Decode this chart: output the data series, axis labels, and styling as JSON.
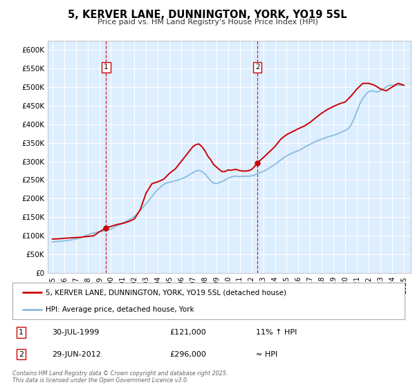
{
  "title": "5, KERVER LANE, DUNNINGTON, YORK, YO19 5SL",
  "subtitle": "Price paid vs. HM Land Registry's House Price Index (HPI)",
  "background_color": "#ffffff",
  "plot_bg_color": "#ddeeff",
  "grid_color": "#ffffff",
  "ylim": [
    0,
    625000
  ],
  "yticks": [
    0,
    50000,
    100000,
    150000,
    200000,
    250000,
    300000,
    350000,
    400000,
    450000,
    500000,
    550000,
    600000
  ],
  "ytick_labels": [
    "£0",
    "£50K",
    "£100K",
    "£150K",
    "£200K",
    "£250K",
    "£300K",
    "£350K",
    "£400K",
    "£450K",
    "£500K",
    "£550K",
    "£600K"
  ],
  "xlim_start": 1994.6,
  "xlim_end": 2025.6,
  "xticks": [
    1995,
    1996,
    1997,
    1998,
    1999,
    2000,
    2001,
    2002,
    2003,
    2004,
    2005,
    2006,
    2007,
    2008,
    2009,
    2010,
    2011,
    2012,
    2013,
    2014,
    2015,
    2016,
    2017,
    2018,
    2019,
    2020,
    2021,
    2022,
    2023,
    2024,
    2025
  ],
  "sale1_x": 1999.58,
  "sale1_y": 121000,
  "sale1_label": "1",
  "sale1_date": "30-JUL-1999",
  "sale1_price": "£121,000",
  "sale1_hpi": "11% ↑ HPI",
  "sale2_x": 2012.5,
  "sale2_y": 296000,
  "sale2_label": "2",
  "sale2_date": "29-JUN-2012",
  "sale2_price": "£296,000",
  "sale2_hpi": "≈ HPI",
  "line_color": "#cc0000",
  "hpi_color": "#88bbdd",
  "marker_color": "#cc0000",
  "dashed_color": "#cc0000",
  "legend_line1": "5, KERVER LANE, DUNNINGTON, YORK, YO19 5SL (detached house)",
  "legend_line2": "HPI: Average price, detached house, York",
  "footer": "Contains HM Land Registry data © Crown copyright and database right 2025.\nThis data is licensed under the Open Government Licence v3.0.",
  "hpi_data_x": [
    1995.0,
    1995.25,
    1995.5,
    1995.75,
    1996.0,
    1996.25,
    1996.5,
    1996.75,
    1997.0,
    1997.25,
    1997.5,
    1997.75,
    1998.0,
    1998.25,
    1998.5,
    1998.75,
    1999.0,
    1999.25,
    1999.5,
    1999.75,
    2000.0,
    2000.25,
    2000.5,
    2000.75,
    2001.0,
    2001.25,
    2001.5,
    2001.75,
    2002.0,
    2002.25,
    2002.5,
    2002.75,
    2003.0,
    2003.25,
    2003.5,
    2003.75,
    2004.0,
    2004.25,
    2004.5,
    2004.75,
    2005.0,
    2005.25,
    2005.5,
    2005.75,
    2006.0,
    2006.25,
    2006.5,
    2006.75,
    2007.0,
    2007.25,
    2007.5,
    2007.75,
    2008.0,
    2008.25,
    2008.5,
    2008.75,
    2009.0,
    2009.25,
    2009.5,
    2009.75,
    2010.0,
    2010.25,
    2010.5,
    2010.75,
    2011.0,
    2011.25,
    2011.5,
    2011.75,
    2012.0,
    2012.25,
    2012.5,
    2012.75,
    2013.0,
    2013.25,
    2013.5,
    2013.75,
    2014.0,
    2014.25,
    2014.5,
    2014.75,
    2015.0,
    2015.25,
    2015.5,
    2015.75,
    2016.0,
    2016.25,
    2016.5,
    2016.75,
    2017.0,
    2017.25,
    2017.5,
    2017.75,
    2018.0,
    2018.25,
    2018.5,
    2018.75,
    2019.0,
    2019.25,
    2019.5,
    2019.75,
    2020.0,
    2020.25,
    2020.5,
    2020.75,
    2021.0,
    2021.25,
    2021.5,
    2021.75,
    2022.0,
    2022.25,
    2022.5,
    2022.75,
    2023.0,
    2023.25,
    2023.5,
    2023.75,
    2024.0,
    2024.25,
    2024.5,
    2024.75,
    2025.0
  ],
  "hpi_data_y": [
    83000,
    84000,
    84500,
    85000,
    86000,
    87000,
    88000,
    89500,
    91000,
    93000,
    96000,
    99000,
    102000,
    105000,
    107000,
    109000,
    111000,
    112000,
    113000,
    115000,
    118000,
    122000,
    126000,
    130000,
    134000,
    138000,
    142000,
    146000,
    152000,
    160000,
    168000,
    177000,
    186000,
    196000,
    206000,
    216000,
    224000,
    232000,
    238000,
    242000,
    244000,
    246000,
    248000,
    250000,
    253000,
    256000,
    260000,
    265000,
    270000,
    274000,
    276000,
    273000,
    267000,
    258000,
    248000,
    242000,
    240000,
    243000,
    246000,
    250000,
    255000,
    258000,
    260000,
    260000,
    259000,
    260000,
    260000,
    260000,
    261000,
    263000,
    267000,
    270000,
    273000,
    277000,
    282000,
    287000,
    292000,
    298000,
    304000,
    310000,
    315000,
    319000,
    323000,
    326000,
    329000,
    333000,
    338000,
    342000,
    346000,
    350000,
    354000,
    357000,
    360000,
    363000,
    366000,
    368000,
    370000,
    373000,
    376000,
    380000,
    383000,
    388000,
    398000,
    415000,
    435000,
    455000,
    470000,
    480000,
    488000,
    490000,
    488000,
    487000,
    490000,
    495000,
    500000,
    505000,
    505000,
    505000,
    505000,
    505000,
    505000
  ],
  "price_data_x": [
    1995.0,
    1995.5,
    1996.0,
    1996.5,
    1997.0,
    1997.5,
    1998.0,
    1998.5,
    1999.0,
    1999.58,
    2000.0,
    2000.5,
    2001.0,
    2001.5,
    2002.0,
    2002.5,
    2003.0,
    2003.5,
    2004.0,
    2004.5,
    2005.0,
    2005.5,
    2006.0,
    2006.5,
    2007.0,
    2007.25,
    2007.5,
    2007.75,
    2008.0,
    2008.25,
    2008.5,
    2008.75,
    2009.0,
    2009.25,
    2009.5,
    2009.75,
    2010.0,
    2010.25,
    2010.5,
    2010.75,
    2011.0,
    2011.25,
    2011.5,
    2011.75,
    2012.0,
    2012.25,
    2012.5,
    2012.75,
    2013.0,
    2013.5,
    2014.0,
    2014.5,
    2015.0,
    2015.5,
    2016.0,
    2016.5,
    2017.0,
    2017.5,
    2018.0,
    2018.5,
    2019.0,
    2019.5,
    2020.0,
    2020.5,
    2021.0,
    2021.5,
    2022.0,
    2022.5,
    2023.0,
    2023.5,
    2024.0,
    2024.5,
    2025.0
  ],
  "price_data_y": [
    91000,
    91500,
    93000,
    94000,
    95000,
    96000,
    98000,
    99500,
    110000,
    121000,
    125000,
    130000,
    133000,
    138000,
    145000,
    170000,
    215000,
    240000,
    245000,
    252000,
    268000,
    280000,
    300000,
    320000,
    340000,
    345000,
    347000,
    340000,
    330000,
    315000,
    305000,
    292000,
    285000,
    278000,
    272000,
    273000,
    277000,
    276000,
    278000,
    278000,
    275000,
    274000,
    274000,
    275000,
    278000,
    286000,
    296000,
    303000,
    310000,
    325000,
    340000,
    360000,
    372000,
    380000,
    388000,
    395000,
    405000,
    418000,
    430000,
    440000,
    448000,
    455000,
    460000,
    476000,
    495000,
    510000,
    510000,
    505000,
    495000,
    490000,
    500000,
    510000,
    505000
  ]
}
